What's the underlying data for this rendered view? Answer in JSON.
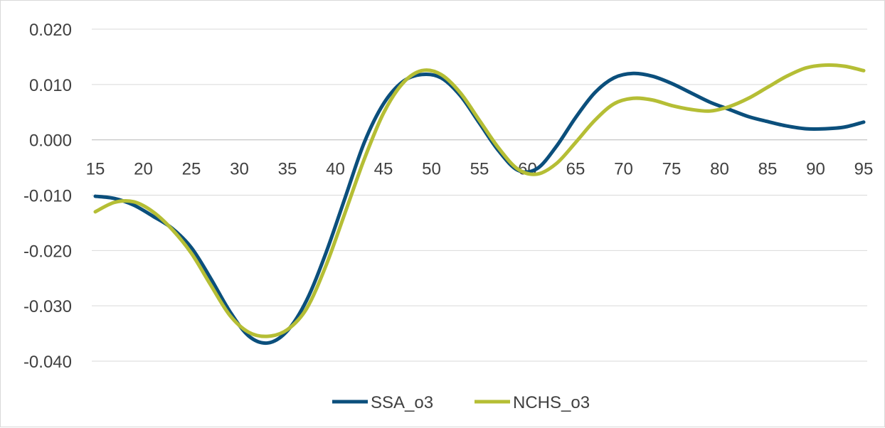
{
  "chart_data": {
    "type": "line",
    "title": "",
    "xlabel": "",
    "ylabel": "",
    "xlim": [
      15,
      95
    ],
    "ylim": [
      -0.04,
      0.02
    ],
    "x_ticks": [
      15,
      20,
      25,
      30,
      35,
      40,
      45,
      50,
      55,
      60,
      65,
      70,
      75,
      80,
      85,
      90,
      95
    ],
    "x_tick_labels": [
      "15",
      "20",
      "25",
      "30",
      "35",
      "40",
      "45",
      "50",
      "55",
      "60",
      "65",
      "70",
      "75",
      "80",
      "85",
      "90",
      "95"
    ],
    "y_ticks": [
      -0.04,
      -0.03,
      -0.02,
      -0.01,
      0.0,
      0.01,
      0.02
    ],
    "y_tick_labels": [
      "-0.040",
      "-0.030",
      "-0.020",
      "-0.010",
      "0.000",
      "0.010",
      "0.020"
    ],
    "grid": true,
    "legend_position": "bottom",
    "x": [
      15,
      17,
      19,
      21,
      23,
      25,
      27,
      29,
      31,
      33,
      35,
      37,
      39,
      41,
      43,
      45,
      47,
      49,
      51,
      53,
      55,
      57,
      59,
      61,
      63,
      65,
      67,
      69,
      71,
      73,
      75,
      77,
      79,
      81,
      83,
      85,
      87,
      89,
      91,
      93,
      95
    ],
    "series": [
      {
        "name": "SSA_o3",
        "color": "#0b4f7c",
        "values": [
          -0.0102,
          -0.0106,
          -0.0118,
          -0.0138,
          -0.016,
          -0.0195,
          -0.025,
          -0.031,
          -0.0355,
          -0.0367,
          -0.0345,
          -0.029,
          -0.0205,
          -0.0105,
          -0.0005,
          0.0065,
          0.0105,
          0.0118,
          0.0112,
          0.008,
          0.003,
          -0.002,
          -0.0055,
          -0.0052,
          -0.0012,
          0.004,
          0.0085,
          0.0112,
          0.012,
          0.0115,
          0.0102,
          0.0085,
          0.0068,
          0.0055,
          0.0042,
          0.0033,
          0.0025,
          0.002,
          0.002,
          0.0023,
          0.0032
        ]
      },
      {
        "name": "NCHS_o3",
        "color": "#b5be35",
        "values": [
          -0.013,
          -0.0113,
          -0.0112,
          -0.013,
          -0.0162,
          -0.0205,
          -0.0262,
          -0.0317,
          -0.0348,
          -0.0355,
          -0.0343,
          -0.0305,
          -0.0228,
          -0.0132,
          -0.0035,
          0.0048,
          0.0102,
          0.0125,
          0.0118,
          0.0085,
          0.0035,
          -0.0015,
          -0.0053,
          -0.0062,
          -0.0043,
          -0.0005,
          0.0035,
          0.0065,
          0.0075,
          0.0072,
          0.0062,
          0.0055,
          0.0052,
          0.006,
          0.0075,
          0.0095,
          0.0115,
          0.013,
          0.0135,
          0.0133,
          0.0125
        ]
      }
    ]
  }
}
